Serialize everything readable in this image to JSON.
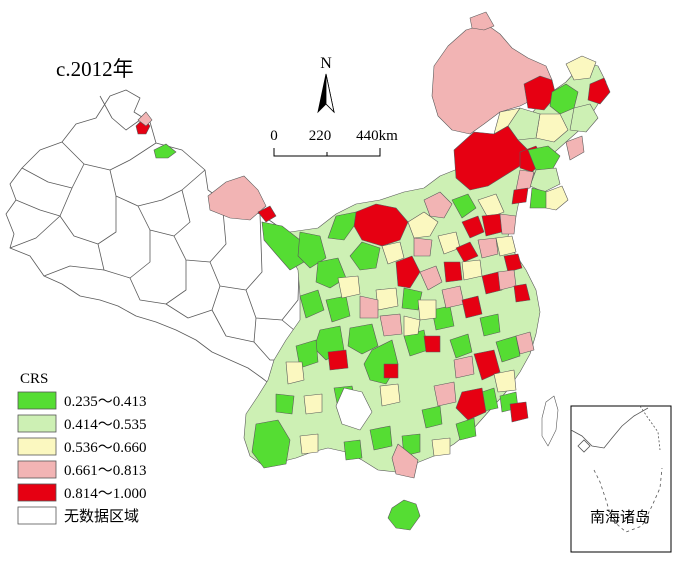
{
  "map": {
    "panel_label": "c.2012年",
    "scale_bar": {
      "tick_0": "0",
      "tick_1": "220",
      "tick_2": "440km"
    },
    "north_arrow_label": "N",
    "inset_label": "南海诸岛"
  },
  "legend": {
    "title": "CRS",
    "items": [
      {
        "label": "0.235～0.413",
        "color": "#55dd33"
      },
      {
        "label": "0.414～0.535",
        "color": "#cdf0b4"
      },
      {
        "label": "0.536～0.660",
        "color": "#fbf8c0"
      },
      {
        "label": "0.661～0.813",
        "color": "#f2b4b4"
      },
      {
        "label": "0.814～1.000",
        "color": "#e60012"
      },
      {
        "label": "无数据区域",
        "color": "#ffffff"
      }
    ]
  },
  "colors": {
    "outline": "#5a5a5a",
    "class_1": "#55dd33",
    "class_2": "#cdf0b4",
    "class_3": "#fbf8c0",
    "class_4": "#f2b4b4",
    "class_5": "#e60012",
    "no_data": "#ffffff"
  }
}
